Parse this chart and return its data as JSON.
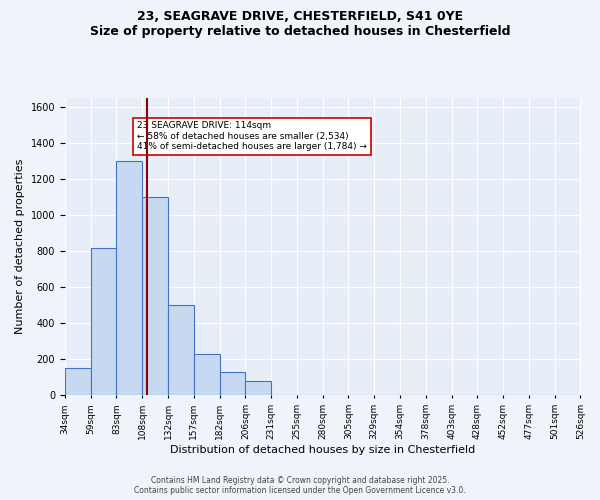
{
  "title_line1": "23, SEAGRAVE DRIVE, CHESTERFIELD, S41 0YE",
  "title_line2": "Size of property relative to detached houses in Chesterfield",
  "xlabel": "Distribution of detached houses by size in Chesterfield",
  "ylabel": "Number of detached properties",
  "bin_labels": [
    "34sqm",
    "59sqm",
    "83sqm",
    "108sqm",
    "132sqm",
    "157sqm",
    "182sqm",
    "206sqm",
    "231sqm",
    "255sqm",
    "280sqm",
    "305sqm",
    "329sqm",
    "354sqm",
    "378sqm",
    "403sqm",
    "428sqm",
    "452sqm",
    "477sqm",
    "501sqm",
    "526sqm"
  ],
  "bar_values": [
    150,
    820,
    1300,
    1100,
    500,
    230,
    130,
    80,
    0,
    0,
    0,
    0,
    0,
    0,
    0,
    0,
    0,
    0,
    0,
    0
  ],
  "bar_color": "#c6d9f0",
  "bar_edge_color": "#4472c4",
  "property_line_x": 114,
  "property_line_color": "#8b0000",
  "annotation_text": "23 SEAGRAVE DRIVE: 114sqm\n← 58% of detached houses are smaller (2,534)\n41% of semi-detached houses are larger (1,784) →",
  "annotation_box_color": "#ffffff",
  "annotation_box_edge": "#cc0000",
  "ylim": [
    0,
    1650
  ],
  "footer1": "Contains HM Land Registry data © Crown copyright and database right 2025.",
  "footer2": "Contains public sector information licensed under the Open Government Licence v3.0.",
  "bg_color": "#f0f4fa",
  "plot_bg_color": "#e8eef8"
}
